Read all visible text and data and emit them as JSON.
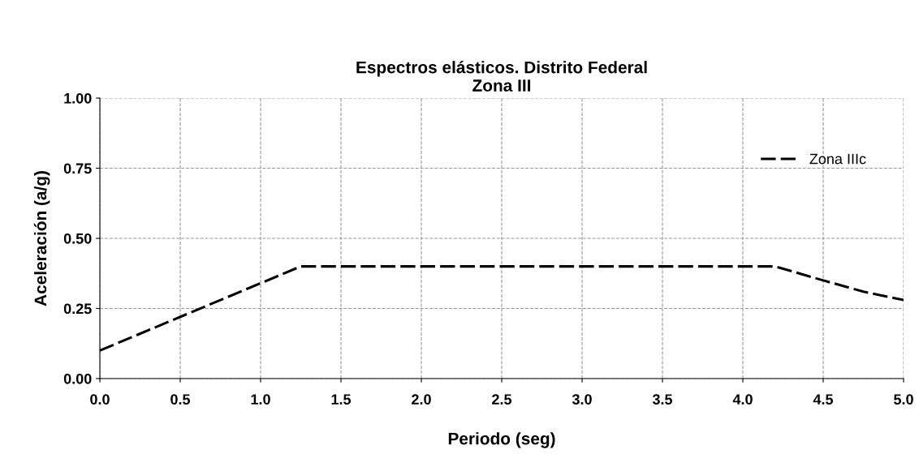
{
  "chart_data": {
    "type": "line",
    "title": "Espectros elásticos. Distrito Federal\nZona III",
    "xlabel": "Periodo (seg)",
    "ylabel": "Aceleración (a/g)",
    "series": [
      {
        "name": "Zona IIIc",
        "color": "#000000",
        "x": [
          0.0,
          1.25,
          4.2,
          4.5,
          4.75,
          5.0
        ],
        "values": [
          0.1,
          0.4,
          0.4,
          0.35,
          0.31,
          0.28
        ]
      }
    ],
    "xlim": [
      0.0,
      5.0
    ],
    "xticks": [
      {
        "value": 0,
        "label": "0.0"
      },
      0.5,
      {
        "value": 1,
        "label": "1.0"
      },
      1.5,
      {
        "value": 2,
        "label": "2.0"
      },
      2.5,
      {
        "value": 3,
        "label": "3.0"
      },
      3.5,
      {
        "value": 4,
        "label": "4.0"
      },
      4.5,
      {
        "value": 5,
        "label": "5.0"
      }
    ],
    "ylim": [
      0.0,
      1.0
    ],
    "yticks": [
      {
        "value": 0,
        "label": "0.00"
      },
      0.25,
      {
        "value": 0.5,
        "label": "0.50"
      },
      0.75,
      {
        "value": 1,
        "label": "1.00"
      }
    ],
    "grid": true,
    "legend": "top right",
    "line_style": "dashed",
    "marker": "none"
  }
}
